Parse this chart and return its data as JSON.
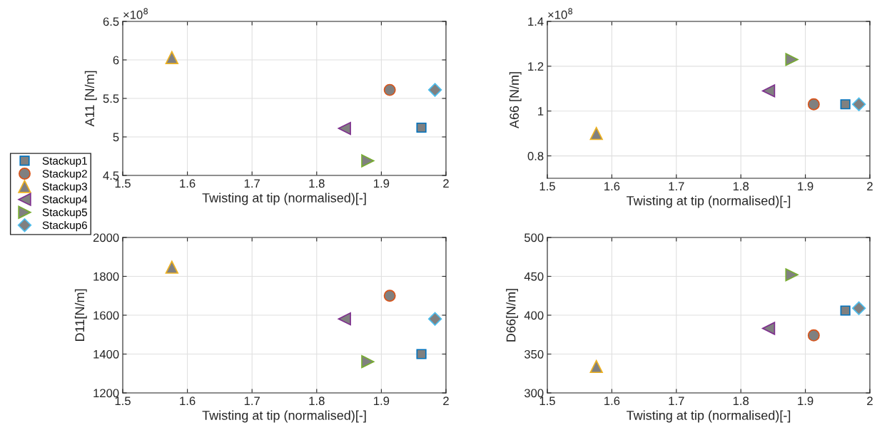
{
  "chart_data": [
    {
      "type": "scatter",
      "xlabel": "Twisting at tip (normalised)[-]",
      "ylabel": "A11 [N/m]",
      "annotations": [
        "×10$^{8}$"
      ],
      "xlim": [
        1.5,
        2
      ],
      "xticks": [
        1.5,
        1.6,
        1.7,
        1.8,
        1.9,
        2
      ],
      "ylim": [
        4.5,
        6.5
      ],
      "yticks": [
        4.5,
        5,
        5.5,
        6,
        6.5
      ],
      "grid": true,
      "legend": "left",
      "series": [
        {
          "name": "Stackup1",
          "color": "#0072bd",
          "marker": "square",
          "x": [
            1.962
          ],
          "values": [
            5.12
          ]
        },
        {
          "name": "Stackup2",
          "color": "#d95319",
          "marker": "circle",
          "x": [
            1.913
          ],
          "values": [
            5.61
          ]
        },
        {
          "name": "Stackup3",
          "color": "#edb120",
          "marker": "triangle",
          "x": [
            1.576
          ],
          "values": [
            6.03
          ]
        },
        {
          "name": "Stackup4",
          "color": "#7e2f8e",
          "marker": "triangle-left",
          "x": [
            1.843
          ],
          "values": [
            5.11
          ]
        },
        {
          "name": "Stackup5",
          "color": "#77ac30",
          "marker": "triangle-right",
          "x": [
            1.879
          ],
          "values": [
            4.69
          ]
        },
        {
          "name": "Stackup6",
          "color": "#4dbeee",
          "marker": "diamond",
          "x": [
            1.983
          ],
          "values": [
            5.61
          ]
        }
      ]
    },
    {
      "type": "scatter",
      "xlabel": "Twisting at tip (normalised)[-]",
      "ylabel": "A66 [N/m]",
      "annotations": [
        "×10$^{8}$"
      ],
      "xlim": [
        1.5,
        2
      ],
      "xticks": [
        1.5,
        1.6,
        1.7,
        1.8,
        1.9,
        2
      ],
      "ylim": [
        0.7,
        1.4
      ],
      "yticks": [
        0.8,
        1,
        1.2,
        1.4
      ],
      "grid": true,
      "series": [
        {
          "color": "#0072bd",
          "marker": "square",
          "x": [
            1.962
          ],
          "values": [
            1.03
          ]
        },
        {
          "color": "#d95319",
          "marker": "circle",
          "x": [
            1.913
          ],
          "values": [
            1.03
          ]
        },
        {
          "color": "#edb120",
          "marker": "triangle",
          "x": [
            1.576
          ],
          "values": [
            0.9
          ]
        },
        {
          "color": "#7e2f8e",
          "marker": "triangle-left",
          "x": [
            1.843
          ],
          "values": [
            1.09
          ]
        },
        {
          "color": "#77ac30",
          "marker": "triangle-right",
          "x": [
            1.879
          ],
          "values": [
            1.23
          ]
        },
        {
          "color": "#4dbeee",
          "marker": "diamond",
          "x": [
            1.983
          ],
          "values": [
            1.03
          ]
        }
      ]
    },
    {
      "type": "scatter",
      "xlabel": "Twisting at tip (normalised)[-]",
      "ylabel": "D11[N/m]",
      "xlim": [
        1.5,
        2
      ],
      "xticks": [
        1.5,
        1.6,
        1.7,
        1.8,
        1.9,
        2
      ],
      "ylim": [
        1200,
        2000
      ],
      "yticks": [
        1200,
        1400,
        1600,
        1800,
        2000
      ],
      "grid": true,
      "series": [
        {
          "color": "#0072bd",
          "marker": "square",
          "x": [
            1.962
          ],
          "values": [
            1400
          ]
        },
        {
          "color": "#d95319",
          "marker": "circle",
          "x": [
            1.913
          ],
          "values": [
            1700
          ]
        },
        {
          "color": "#edb120",
          "marker": "triangle",
          "x": [
            1.576
          ],
          "values": [
            1847
          ]
        },
        {
          "color": "#7e2f8e",
          "marker": "triangle-left",
          "x": [
            1.843
          ],
          "values": [
            1581
          ]
        },
        {
          "color": "#77ac30",
          "marker": "triangle-right",
          "x": [
            1.879
          ],
          "values": [
            1361
          ]
        },
        {
          "color": "#4dbeee",
          "marker": "diamond",
          "x": [
            1.983
          ],
          "values": [
            1581
          ]
        }
      ]
    },
    {
      "type": "scatter",
      "xlabel": "Twisting at tip (normalised)[-]",
      "ylabel": "D66[N/m]",
      "xlim": [
        1.5,
        2
      ],
      "xticks": [
        1.5,
        1.6,
        1.7,
        1.8,
        1.9,
        2
      ],
      "ylim": [
        300,
        500
      ],
      "yticks": [
        300,
        350,
        400,
        450,
        500
      ],
      "grid": true,
      "series": [
        {
          "color": "#0072bd",
          "marker": "square",
          "x": [
            1.962
          ],
          "values": [
            406
          ]
        },
        {
          "color": "#d95319",
          "marker": "circle",
          "x": [
            1.913
          ],
          "values": [
            374
          ]
        },
        {
          "color": "#edb120",
          "marker": "triangle",
          "x": [
            1.576
          ],
          "values": [
            334
          ]
        },
        {
          "color": "#7e2f8e",
          "marker": "triangle-left",
          "x": [
            1.843
          ],
          "values": [
            383
          ]
        },
        {
          "color": "#77ac30",
          "marker": "triangle-right",
          "x": [
            1.879
          ],
          "values": [
            452
          ]
        },
        {
          "color": "#4dbeee",
          "marker": "diamond",
          "x": [
            1.983
          ],
          "values": [
            409
          ]
        }
      ]
    }
  ]
}
